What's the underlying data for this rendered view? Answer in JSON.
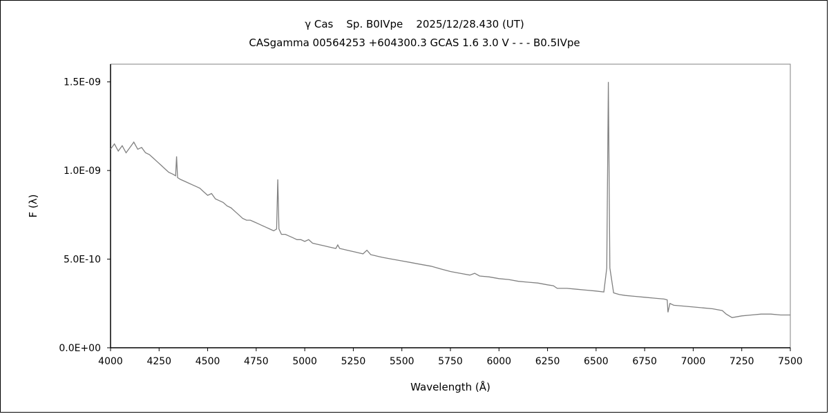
{
  "chart_data": {
    "type": "line",
    "title": "γ Cas    Sp. B0IVpe    2025/12/28.430 (UT)",
    "subtitle": "CASgamma 00564253 +604300.3 GCAS 1.6 3.0 V - - - B0.5IVpe",
    "xlabel": "Wavelength (Å)",
    "ylabel": "F (λ)",
    "xlim": [
      4000,
      7500
    ],
    "ylim": [
      0,
      1.6e-09
    ],
    "x_ticks": [
      4000,
      4250,
      4500,
      4750,
      5000,
      5250,
      5500,
      5750,
      6000,
      6250,
      6500,
      6750,
      7000,
      7250,
      7500
    ],
    "x_tick_labels": [
      "4000",
      "4250",
      "4500",
      "4750",
      "5000",
      "5250",
      "5500",
      "5750",
      "6000",
      "6250",
      "6500",
      "6750",
      "7000",
      "7250",
      "7500"
    ],
    "y_ticks": [
      0,
      5e-10,
      1e-09,
      1.5e-09
    ],
    "y_tick_labels": [
      "0.0E+00",
      "5.0E-10",
      "1.0E-09",
      "1.5E-09"
    ],
    "grid": false,
    "legend": "none",
    "line_color": "#808080",
    "series": [
      {
        "x": [
          4000,
          4020,
          4040,
          4060,
          4080,
          4100,
          4120,
          4140,
          4160,
          4180,
          4200,
          4220,
          4240,
          4260,
          4280,
          4300,
          4320,
          4335,
          4340,
          4345,
          4360,
          4380,
          4400,
          4420,
          4440,
          4460,
          4480,
          4500,
          4520,
          4540,
          4560,
          4580,
          4600,
          4620,
          4640,
          4660,
          4680,
          4700,
          4720,
          4740,
          4760,
          4780,
          4800,
          4820,
          4840,
          4855,
          4861,
          4867,
          4880,
          4900,
          4920,
          4940,
          4960,
          4980,
          5000,
          5020,
          5040,
          5060,
          5080,
          5100,
          5120,
          5140,
          5160,
          5170,
          5180,
          5200,
          5220,
          5240,
          5260,
          5280,
          5300,
          5320,
          5340,
          5360,
          5380,
          5400,
          5450,
          5500,
          5550,
          5600,
          5650,
          5700,
          5750,
          5800,
          5850,
          5875,
          5900,
          5950,
          6000,
          6050,
          6100,
          6150,
          6200,
          6250,
          6280,
          6300,
          6350,
          6400,
          6450,
          6500,
          6540,
          6555,
          6563,
          6571,
          6590,
          6620,
          6650,
          6700,
          6750,
          6800,
          6850,
          6866,
          6870,
          6880,
          6900,
          6950,
          7000,
          7050,
          7100,
          7150,
          7170,
          7200,
          7250,
          7300,
          7350,
          7400,
          7450,
          7500
        ],
        "y": [
          1.12e-09,
          1.15e-09,
          1.11e-09,
          1.14e-09,
          1.1e-09,
          1.13e-09,
          1.16e-09,
          1.12e-09,
          1.13e-09,
          1.1e-09,
          1.09e-09,
          1.07e-09,
          1.05e-09,
          1.03e-09,
          1.01e-09,
          9.9e-10,
          9.8e-10,
          9.7e-10,
          1.08e-09,
          9.6e-10,
          9.5e-10,
          9.4e-10,
          9.3e-10,
          9.2e-10,
          9.1e-10,
          9e-10,
          8.8e-10,
          8.6e-10,
          8.7e-10,
          8.4e-10,
          8.3e-10,
          8.2e-10,
          8e-10,
          7.9e-10,
          7.7e-10,
          7.5e-10,
          7.3e-10,
          7.2e-10,
          7.2e-10,
          7.1e-10,
          7e-10,
          6.9e-10,
          6.8e-10,
          6.7e-10,
          6.6e-10,
          6.7e-10,
          9.5e-10,
          6.7e-10,
          6.4e-10,
          6.4e-10,
          6.3e-10,
          6.2e-10,
          6.1e-10,
          6.1e-10,
          6e-10,
          6.1e-10,
          5.9e-10,
          5.85e-10,
          5.8e-10,
          5.75e-10,
          5.7e-10,
          5.65e-10,
          5.6e-10,
          5.8e-10,
          5.6e-10,
          5.55e-10,
          5.5e-10,
          5.45e-10,
          5.4e-10,
          5.35e-10,
          5.3e-10,
          5.5e-10,
          5.25e-10,
          5.2e-10,
          5.15e-10,
          5.1e-10,
          5e-10,
          4.9e-10,
          4.8e-10,
          4.7e-10,
          4.6e-10,
          4.45e-10,
          4.3e-10,
          4.2e-10,
          4.1e-10,
          4.2e-10,
          4.05e-10,
          4e-10,
          3.9e-10,
          3.85e-10,
          3.75e-10,
          3.7e-10,
          3.65e-10,
          3.55e-10,
          3.5e-10,
          3.35e-10,
          3.35e-10,
          3.3e-10,
          3.25e-10,
          3.2e-10,
          3.15e-10,
          4.5e-10,
          1.5e-09,
          4.5e-10,
          3.1e-10,
          3e-10,
          2.95e-10,
          2.9e-10,
          2.85e-10,
          2.8e-10,
          2.75e-10,
          2.7e-10,
          2e-10,
          2.5e-10,
          2.4e-10,
          2.35e-10,
          2.3e-10,
          2.25e-10,
          2.2e-10,
          2.1e-10,
          1.9e-10,
          1.7e-10,
          1.8e-10,
          1.85e-10,
          1.9e-10,
          1.9e-10,
          1.85e-10,
          1.85e-10
        ]
      }
    ]
  }
}
